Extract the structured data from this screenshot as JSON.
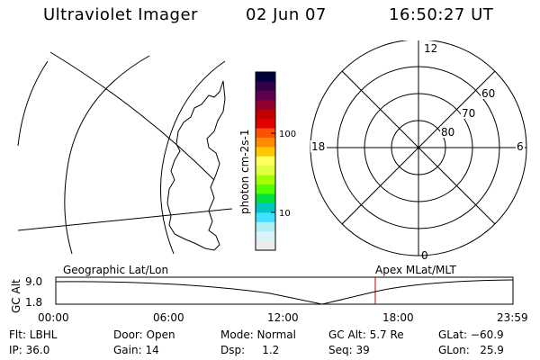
{
  "header": {
    "instrument": "Ultraviolet Imager",
    "date": "02 Jun 07",
    "time": "16:50:27 UT"
  },
  "colorbar": {
    "label": "photon cm-2s-1",
    "ticks": [
      "100",
      "10"
    ],
    "colors": [
      "#000040",
      "#300048",
      "#600048",
      "#900030",
      "#c00000",
      "#e00000",
      "#ff5000",
      "#ff8c00",
      "#ffc800",
      "#ffff60",
      "#e0ff40",
      "#a0ff00",
      "#50ff00",
      "#00e040",
      "#00c8c0",
      "#40e0ff",
      "#b0ecf4",
      "#d8f4f8",
      "#ececec"
    ]
  },
  "polar_plot": {
    "mlt_labels": [
      "12",
      "18",
      "6",
      "0"
    ],
    "lat_labels": [
      "60",
      "70",
      "80"
    ]
  },
  "altitude_plot": {
    "left_title": "Geographic Lat/Lon",
    "right_title": "Apex MLat/MLT",
    "ylabel": "GC Alt",
    "yticks": [
      "9.0",
      "1.8"
    ],
    "xticks": [
      "00:00",
      "06:00",
      "12:00",
      "18:00",
      "23:59"
    ],
    "marker_color": "#c00000"
  },
  "status": {
    "flt": "Flt: LBHL",
    "door": "Door: Open",
    "mode": "Mode: Normal",
    "gc_alt": "GC Alt: 5.7 Re",
    "glat": "GLat: −60.9",
    "ip": "IP: 36.0",
    "gain": "Gain: 14",
    "dsp": "Dsp:     1.2",
    "seq": "Seq: 39",
    "glon": "GLon:   25.9"
  }
}
